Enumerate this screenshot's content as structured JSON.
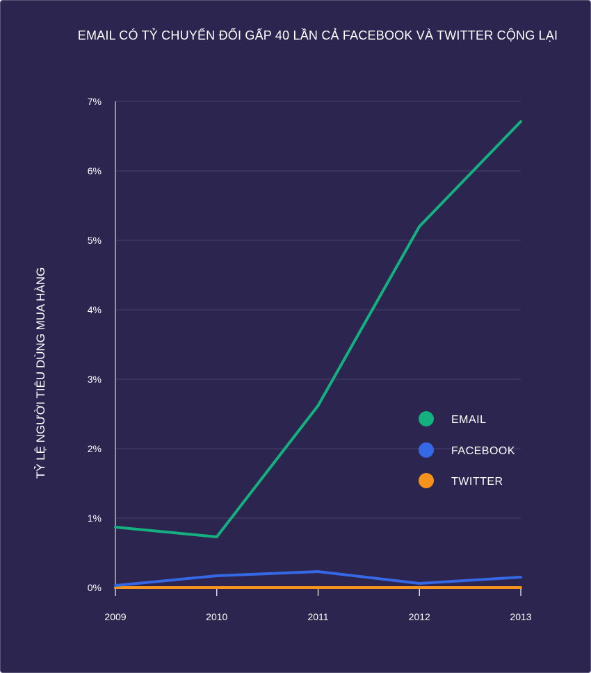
{
  "chart_data": {
    "type": "line",
    "title": "EMAIL CÓ TỶ CHUYỂN ĐỔI GẤP 40 LẦN CẢ FACEBOOK VÀ TWITTER CỘNG LẠI",
    "xlabel": "",
    "ylabel": "TỶ LỆ NGƯỜI TIÊU DÙNG MUA HÀNG",
    "x": [
      "2009",
      "2010",
      "2011",
      "2012",
      "2013"
    ],
    "y_ticks": [
      "0%",
      "1%",
      "2%",
      "3%",
      "4%",
      "5%",
      "6%",
      "7%"
    ],
    "ylim": [
      0,
      7
    ],
    "grid": true,
    "legend_position": "right",
    "series": [
      {
        "name": "EMAIL",
        "color": "#14b07f",
        "values": [
          0.87,
          0.73,
          2.62,
          5.2,
          6.71
        ]
      },
      {
        "name": "FACEBOOK",
        "color": "#3568e5",
        "values": [
          0.03,
          0.17,
          0.23,
          0.06,
          0.15
        ]
      },
      {
        "name": "TWITTER",
        "color": "#f5931d",
        "values": [
          0.0,
          0.0,
          0.0,
          0.0,
          0.0
        ]
      }
    ]
  }
}
